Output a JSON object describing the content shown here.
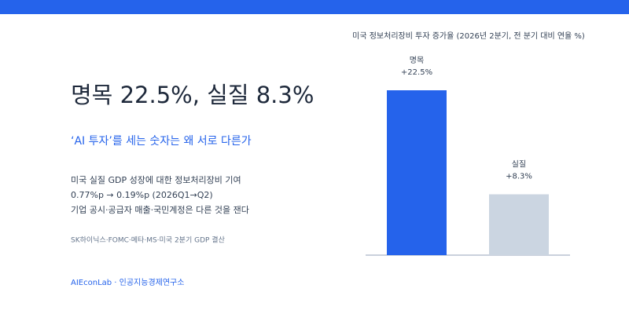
{
  "headline": "명목 22.5%, 실질 8.3%",
  "subtitle": "‘AI 투자’를 세는 숫자는 왜 서로 다른가",
  "body": [
    "미국 실질 GDP 성장에 대한 정보처리장비 기여",
    "0.77%p → 0.19%p (2026Q1→Q2)",
    "기업 공시·공급자 매출·국민계정은 다른 것을 잰다"
  ],
  "source": "SK하이닉스·FOMC·메타·MS·미국 2분기 GDP 결산",
  "footer": "AIEconLab · 인공지능경제연구소",
  "chart_data": {
    "type": "bar",
    "title": "미국 정보처리장비 투자 증가율 (2026년 2분기, 전 분기 대비 연율 %)",
    "categories": [
      "명목",
      "실질"
    ],
    "values": [
      22.5,
      8.3
    ],
    "value_labels": [
      "+22.5%",
      "+8.3%"
    ],
    "colors": [
      "#2563eb",
      "#cbd5e1"
    ]
  }
}
